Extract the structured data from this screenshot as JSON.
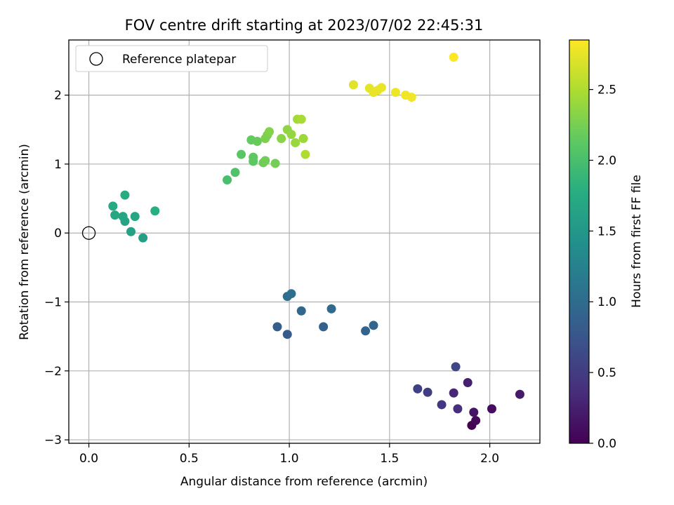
{
  "chart_data": {
    "type": "scatter",
    "title": "FOV centre drift starting at 2023/07/02 22:45:31",
    "xlabel": "Angular distance from reference (arcmin)",
    "ylabel": "Rotation from reference (arcmin)",
    "xlim": [
      -0.1,
      2.25
    ],
    "ylim": [
      -3.05,
      2.8
    ],
    "xticks": [
      0.0,
      0.5,
      1.0,
      1.5,
      2.0
    ],
    "xtick_labels": [
      "0.0",
      "0.5",
      "1.0",
      "1.5",
      "2.0"
    ],
    "yticks": [
      -3,
      -2,
      -1,
      0,
      1,
      2
    ],
    "ytick_labels": [
      "−3",
      "−2",
      "−1",
      "0",
      "1",
      "2"
    ],
    "grid": true,
    "legend": {
      "position": "upper left",
      "entries": [
        "Reference platepar"
      ]
    },
    "reference_point": {
      "x": 0.0,
      "y": 0.0
    },
    "colorbar": {
      "label": "Hours from first FF file",
      "colormap": "viridis",
      "range": [
        0.0,
        2.85
      ],
      "ticks": [
        0.0,
        0.5,
        1.0,
        1.5,
        2.0,
        2.5
      ],
      "tick_labels": [
        "0.0",
        "0.5",
        "1.0",
        "1.5",
        "2.0",
        "2.5"
      ]
    },
    "points": [
      {
        "x": 1.91,
        "y": -2.79,
        "hours": 0.0
      },
      {
        "x": 1.93,
        "y": -2.72,
        "hours": 0.05
      },
      {
        "x": 2.01,
        "y": -2.55,
        "hours": 0.1
      },
      {
        "x": 1.92,
        "y": -2.6,
        "hours": 0.15
      },
      {
        "x": 2.15,
        "y": -2.34,
        "hours": 0.2
      },
      {
        "x": 1.89,
        "y": -2.17,
        "hours": 0.25
      },
      {
        "x": 1.82,
        "y": -2.32,
        "hours": 0.3
      },
      {
        "x": 1.84,
        "y": -2.55,
        "hours": 0.38
      },
      {
        "x": 1.76,
        "y": -2.49,
        "hours": 0.45
      },
      {
        "x": 1.69,
        "y": -2.31,
        "hours": 0.5
      },
      {
        "x": 1.64,
        "y": -2.26,
        "hours": 0.55
      },
      {
        "x": 1.83,
        "y": -1.94,
        "hours": 0.6
      },
      {
        "x": 0.99,
        "y": -1.47,
        "hours": 0.8
      },
      {
        "x": 0.94,
        "y": -1.36,
        "hours": 0.85
      },
      {
        "x": 1.17,
        "y": -1.36,
        "hours": 0.88
      },
      {
        "x": 1.38,
        "y": -1.42,
        "hours": 0.9
      },
      {
        "x": 1.42,
        "y": -1.34,
        "hours": 0.92
      },
      {
        "x": 1.06,
        "y": -1.13,
        "hours": 0.95
      },
      {
        "x": 1.21,
        "y": -1.1,
        "hours": 0.98
      },
      {
        "x": 0.99,
        "y": -0.92,
        "hours": 1.0
      },
      {
        "x": 1.01,
        "y": -0.88,
        "hours": 1.03
      },
      {
        "x": 0.27,
        "y": -0.07,
        "hours": 1.6
      },
      {
        "x": 0.21,
        "y": 0.02,
        "hours": 1.62
      },
      {
        "x": 0.18,
        "y": 0.17,
        "hours": 1.65
      },
      {
        "x": 0.17,
        "y": 0.24,
        "hours": 1.67
      },
      {
        "x": 0.13,
        "y": 0.26,
        "hours": 1.68
      },
      {
        "x": 0.23,
        "y": 0.24,
        "hours": 1.7
      },
      {
        "x": 0.12,
        "y": 0.39,
        "hours": 1.72
      },
      {
        "x": 0.18,
        "y": 0.55,
        "hours": 1.75
      },
      {
        "x": 0.33,
        "y": 0.32,
        "hours": 1.78
      },
      {
        "x": 0.69,
        "y": 0.77,
        "hours": 2.0
      },
      {
        "x": 0.73,
        "y": 0.88,
        "hours": 2.05
      },
      {
        "x": 0.76,
        "y": 1.14,
        "hours": 2.1
      },
      {
        "x": 0.82,
        "y": 1.04,
        "hours": 2.12
      },
      {
        "x": 0.82,
        "y": 1.1,
        "hours": 2.13
      },
      {
        "x": 0.81,
        "y": 1.35,
        "hours": 2.15
      },
      {
        "x": 0.84,
        "y": 1.33,
        "hours": 2.18
      },
      {
        "x": 0.87,
        "y": 1.02,
        "hours": 2.2
      },
      {
        "x": 0.88,
        "y": 1.05,
        "hours": 2.22
      },
      {
        "x": 0.93,
        "y": 1.01,
        "hours": 2.24
      },
      {
        "x": 0.89,
        "y": 1.42,
        "hours": 2.26
      },
      {
        "x": 0.88,
        "y": 1.37,
        "hours": 2.27
      },
      {
        "x": 0.9,
        "y": 1.47,
        "hours": 2.3
      },
      {
        "x": 0.96,
        "y": 1.37,
        "hours": 2.33
      },
      {
        "x": 0.99,
        "y": 1.5,
        "hours": 2.36
      },
      {
        "x": 1.01,
        "y": 1.43,
        "hours": 2.38
      },
      {
        "x": 1.03,
        "y": 1.31,
        "hours": 2.4
      },
      {
        "x": 1.07,
        "y": 1.37,
        "hours": 2.42
      },
      {
        "x": 1.04,
        "y": 1.65,
        "hours": 2.45
      },
      {
        "x": 1.06,
        "y": 1.65,
        "hours": 2.47
      },
      {
        "x": 1.08,
        "y": 1.14,
        "hours": 2.5
      },
      {
        "x": 1.32,
        "y": 2.15,
        "hours": 2.72
      },
      {
        "x": 1.4,
        "y": 2.1,
        "hours": 2.74
      },
      {
        "x": 1.42,
        "y": 2.04,
        "hours": 2.75
      },
      {
        "x": 1.44,
        "y": 2.07,
        "hours": 2.76
      },
      {
        "x": 1.46,
        "y": 2.11,
        "hours": 2.77
      },
      {
        "x": 1.53,
        "y": 2.04,
        "hours": 2.78
      },
      {
        "x": 1.58,
        "y": 2.0,
        "hours": 2.79
      },
      {
        "x": 1.61,
        "y": 1.97,
        "hours": 2.8
      },
      {
        "x": 1.82,
        "y": 2.55,
        "hours": 2.85
      }
    ]
  }
}
